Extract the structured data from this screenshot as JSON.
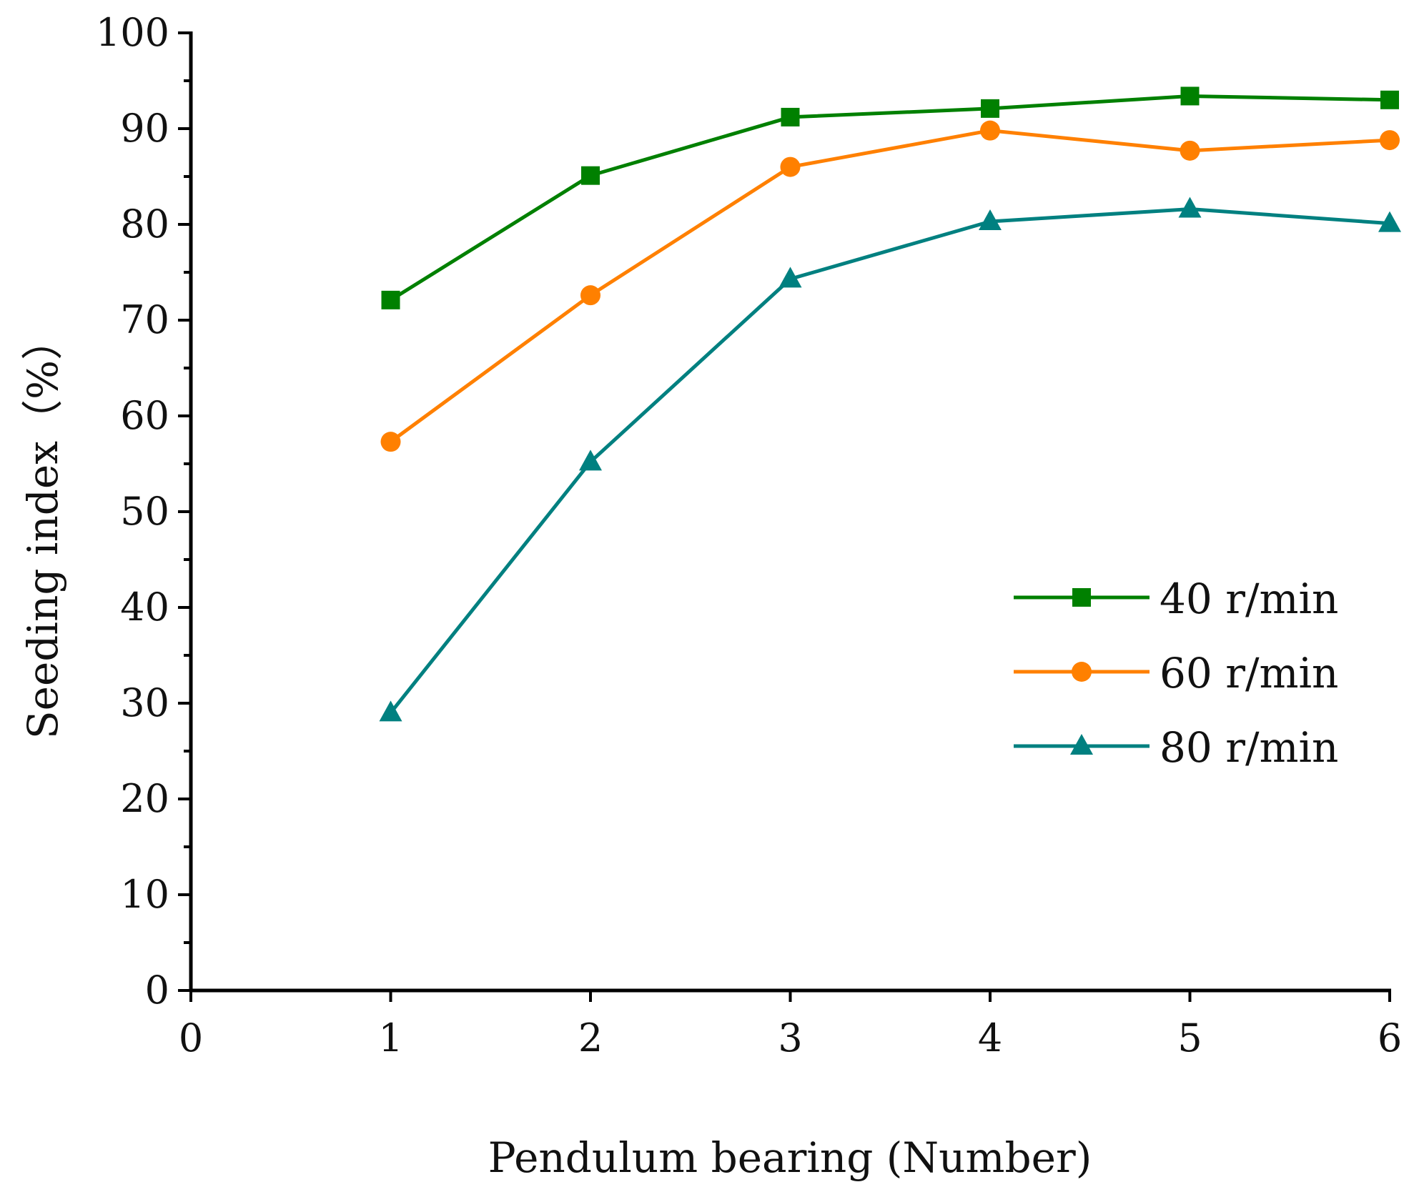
{
  "chart_data": {
    "type": "line",
    "title": "",
    "xlabel": "Pendulum bearing (Number)",
    "ylabel": "Seeding index（%）",
    "xlim": [
      0,
      6
    ],
    "ylim": [
      0,
      100
    ],
    "xticks": [
      0,
      1,
      2,
      3,
      4,
      5,
      6
    ],
    "yticks": [
      0,
      10,
      20,
      30,
      40,
      50,
      60,
      70,
      80,
      90,
      100
    ],
    "grid": false,
    "legend_position": "center-right",
    "x": [
      1,
      2,
      3,
      4,
      5,
      6
    ],
    "series": [
      {
        "name": "40 r/min",
        "marker": "square",
        "color": "#008000",
        "values": [
          72.1,
          85.1,
          91.2,
          92.1,
          93.4,
          93.0
        ]
      },
      {
        "name": "60 r/min",
        "marker": "circle",
        "color": "#ff8000",
        "values": [
          57.3,
          72.6,
          86.0,
          89.8,
          87.7,
          88.8
        ]
      },
      {
        "name": "80 r/min",
        "marker": "triangle",
        "color": "#008080",
        "values": [
          29.0,
          55.2,
          74.3,
          80.3,
          81.6,
          80.1
        ]
      }
    ]
  }
}
